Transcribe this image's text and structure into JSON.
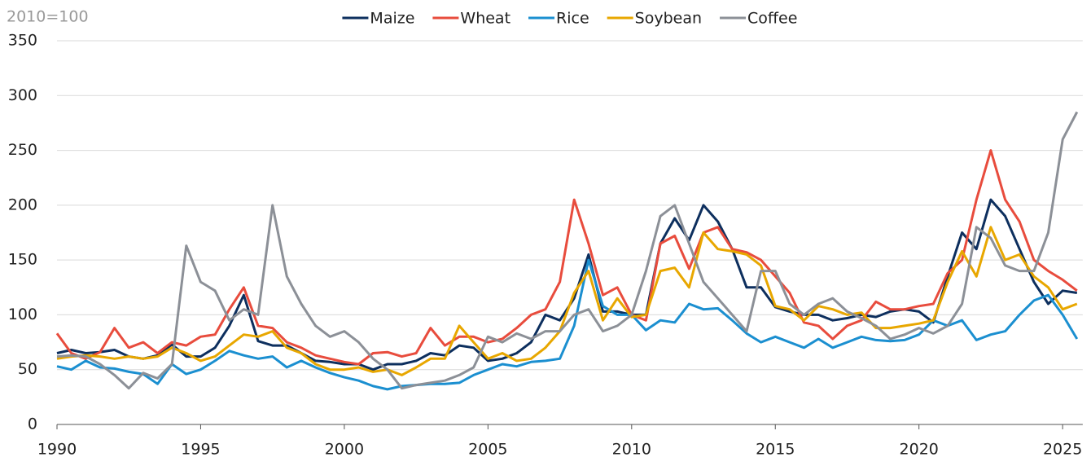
{
  "chart_data": {
    "type": "line",
    "y_label": "2010=100",
    "x": [
      1990,
      1990.5,
      1991,
      1991.5,
      1992,
      1992.5,
      1993,
      1993.5,
      1994,
      1994.5,
      1995,
      1995.5,
      1996,
      1996.5,
      1997,
      1997.5,
      1998,
      1998.5,
      1999,
      1999.5,
      2000,
      2000.5,
      2001,
      2001.5,
      2002,
      2002.5,
      2003,
      2003.5,
      2004,
      2004.5,
      2005,
      2005.5,
      2006,
      2006.5,
      2007,
      2007.5,
      2008,
      2008.5,
      2009,
      2009.5,
      2010,
      2010.5,
      2011,
      2011.5,
      2012,
      2012.5,
      2013,
      2013.5,
      2014,
      2014.5,
      2015,
      2015.5,
      2016,
      2016.5,
      2017,
      2017.5,
      2018,
      2018.5,
      2019,
      2019.5,
      2020,
      2020.5,
      2021,
      2021.5,
      2022,
      2022.5,
      2023,
      2023.5,
      2024,
      2024.5,
      2025,
      2025.5
    ],
    "series": [
      {
        "name": "Maize",
        "color": "#0d2f5e",
        "values": [
          65,
          68,
          65,
          66,
          68,
          62,
          60,
          63,
          73,
          62,
          62,
          70,
          90,
          118,
          76,
          72,
          72,
          65,
          58,
          57,
          55,
          55,
          50,
          55,
          55,
          58,
          65,
          63,
          72,
          70,
          58,
          60,
          65,
          75,
          100,
          95,
          115,
          155,
          103,
          103,
          100,
          100,
          165,
          188,
          168,
          200,
          185,
          160,
          125,
          125,
          107,
          103,
          100,
          100,
          95,
          97,
          100,
          98,
          103,
          105,
          103,
          93,
          135,
          175,
          160,
          205,
          190,
          160,
          130,
          110,
          122,
          120
        ]
      },
      {
        "name": "Wheat",
        "color": "#e84c3d",
        "values": [
          83,
          65,
          60,
          66,
          88,
          70,
          75,
          65,
          75,
          72,
          80,
          82,
          105,
          125,
          90,
          88,
          75,
          70,
          63,
          60,
          57,
          55,
          65,
          66,
          62,
          65,
          88,
          72,
          80,
          80,
          75,
          78,
          88,
          100,
          105,
          130,
          205,
          165,
          118,
          125,
          100,
          95,
          165,
          172,
          142,
          175,
          180,
          160,
          157,
          150,
          135,
          120,
          93,
          90,
          78,
          90,
          95,
          112,
          105,
          105,
          108,
          110,
          138,
          150,
          205,
          250,
          205,
          185,
          150,
          140,
          132,
          122
        ]
      },
      {
        "name": "Rice",
        "color": "#1b8fd0",
        "values": [
          53,
          50,
          58,
          52,
          51,
          48,
          46,
          37,
          55,
          46,
          50,
          58,
          67,
          63,
          60,
          62,
          52,
          58,
          52,
          47,
          43,
          40,
          35,
          32,
          35,
          36,
          37,
          37,
          38,
          45,
          50,
          55,
          53,
          57,
          58,
          60,
          90,
          150,
          108,
          100,
          100,
          86,
          95,
          93,
          110,
          105,
          106,
          95,
          83,
          75,
          80,
          75,
          70,
          78,
          70,
          75,
          80,
          77,
          76,
          77,
          82,
          95,
          90,
          95,
          77,
          82,
          85,
          100,
          113,
          118,
          100,
          78
        ]
      },
      {
        "name": "Soybean",
        "color": "#e8a700",
        "values": [
          60,
          62,
          63,
          62,
          60,
          62,
          60,
          62,
          70,
          65,
          58,
          62,
          72,
          82,
          80,
          85,
          70,
          65,
          55,
          50,
          50,
          52,
          48,
          50,
          45,
          52,
          60,
          60,
          90,
          75,
          60,
          65,
          58,
          60,
          70,
          85,
          120,
          140,
          95,
          115,
          98,
          100,
          140,
          143,
          125,
          175,
          160,
          158,
          155,
          145,
          108,
          105,
          95,
          108,
          105,
          100,
          102,
          88,
          88,
          90,
          92,
          95,
          130,
          158,
          135,
          180,
          150,
          155,
          135,
          125,
          105,
          110
        ]
      },
      {
        "name": "Coffee",
        "color": "#8c9097",
        "values": [
          62,
          63,
          62,
          55,
          45,
          33,
          47,
          42,
          55,
          163,
          130,
          122,
          95,
          105,
          100,
          200,
          135,
          110,
          90,
          80,
          85,
          75,
          60,
          50,
          33,
          36,
          38,
          40,
          45,
          52,
          80,
          75,
          83,
          78,
          85,
          85,
          100,
          105,
          85,
          90,
          100,
          140,
          190,
          200,
          165,
          130,
          115,
          100,
          85,
          140,
          140,
          110,
          100,
          110,
          115,
          103,
          97,
          90,
          78,
          82,
          88,
          83,
          90,
          110,
          180,
          170,
          145,
          140,
          140,
          175,
          260,
          285
        ]
      }
    ],
    "xlim": [
      1990,
      2025.7
    ],
    "xticks": [
      1990,
      1995,
      2000,
      2005,
      2010,
      2015,
      2020,
      2025
    ],
    "ylim": [
      0,
      350
    ],
    "yticks": [
      0,
      50,
      100,
      150,
      200,
      250,
      300,
      350
    ],
    "grid": true,
    "legend": "top"
  }
}
